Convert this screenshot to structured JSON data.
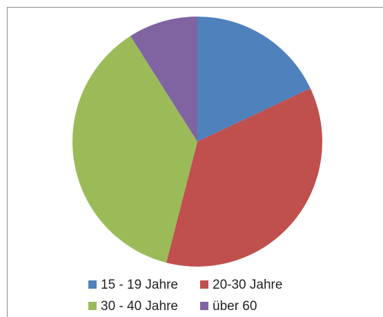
{
  "chart_data": {
    "type": "pie",
    "categories": [
      "15 - 19 Jahre",
      "20-30 Jahre",
      "30 - 40 Jahre",
      "über 60"
    ],
    "values": [
      18,
      36,
      37,
      9
    ],
    "colors": [
      "#4f81bd",
      "#c0504d",
      "#9bbb59",
      "#8064a2"
    ],
    "legend": "bottom"
  }
}
